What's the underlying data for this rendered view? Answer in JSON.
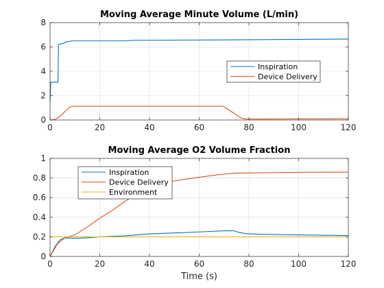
{
  "chart_data": [
    {
      "type": "line",
      "title": "Moving Average Minute Volume (L/min)",
      "xlabel": "",
      "ylabel": "",
      "xlim": [
        0,
        120
      ],
      "ylim": [
        0,
        8
      ],
      "xticks": [
        0,
        20,
        40,
        60,
        80,
        100,
        120
      ],
      "yticks": [
        0,
        2,
        4,
        6,
        8
      ],
      "grid": true,
      "legend_position": "right",
      "series": [
        {
          "name": "Inspiration",
          "color": "#0072BD",
          "points": [
            [
              0.0,
              1.5
            ],
            [
              0.3,
              3.1
            ],
            [
              3.2,
              3.1
            ],
            [
              3.4,
              6.2
            ],
            [
              5.5,
              6.3
            ],
            [
              6.0,
              6.4
            ],
            [
              9.0,
              6.5
            ],
            [
              30.0,
              6.5
            ],
            [
              34.0,
              6.55
            ],
            [
              70.0,
              6.58
            ],
            [
              120.0,
              6.65
            ]
          ]
        },
        {
          "name": "Device Delivery",
          "color": "#D95319",
          "points": [
            [
              0.0,
              0.0
            ],
            [
              2.0,
              0.05
            ],
            [
              4.0,
              0.3
            ],
            [
              6.0,
              0.7
            ],
            [
              8.0,
              1.05
            ],
            [
              9.0,
              1.12
            ],
            [
              12.0,
              1.13
            ],
            [
              69.5,
              1.13
            ],
            [
              71.0,
              0.95
            ],
            [
              74.0,
              0.55
            ],
            [
              77.0,
              0.15
            ],
            [
              79.0,
              0.08
            ],
            [
              120.0,
              0.1
            ]
          ]
        }
      ]
    },
    {
      "type": "line",
      "title": "Moving Average O2 Volume Fraction",
      "xlabel": "Time (s)",
      "ylabel": "",
      "xlim": [
        0,
        120
      ],
      "ylim": [
        0,
        1
      ],
      "xticks": [
        0,
        20,
        40,
        60,
        80,
        100,
        120
      ],
      "yticks": [
        0,
        0.2,
        0.4,
        0.6,
        0.8,
        1
      ],
      "grid": true,
      "legend_position": "top-left",
      "series": [
        {
          "name": "Inspiration",
          "color": "#0072BD",
          "points": [
            [
              0.0,
              0.0
            ],
            [
              2.0,
              0.1
            ],
            [
              4.0,
              0.17
            ],
            [
              6.0,
              0.19
            ],
            [
              10.0,
              0.185
            ],
            [
              15.0,
              0.19
            ],
            [
              20.0,
              0.2
            ],
            [
              30.0,
              0.21
            ],
            [
              40.0,
              0.23
            ],
            [
              50.0,
              0.24
            ],
            [
              60.0,
              0.25
            ],
            [
              70.0,
              0.262
            ],
            [
              74.0,
              0.262
            ],
            [
              76.0,
              0.245
            ],
            [
              79.0,
              0.232
            ],
            [
              85.0,
              0.226
            ],
            [
              100.0,
              0.22
            ],
            [
              120.0,
              0.213
            ]
          ]
        },
        {
          "name": "Device Delivery",
          "color": "#D95319",
          "points": [
            [
              0.0,
              0.0
            ],
            [
              3.0,
              0.13
            ],
            [
              6.0,
              0.19
            ],
            [
              10.0,
              0.22
            ],
            [
              15.0,
              0.3
            ],
            [
              20.0,
              0.39
            ],
            [
              25.0,
              0.47
            ],
            [
              30.0,
              0.56
            ],
            [
              35.0,
              0.64
            ],
            [
              40.0,
              0.7
            ],
            [
              45.0,
              0.745
            ],
            [
              50.0,
              0.77
            ],
            [
              55.0,
              0.79
            ],
            [
              60.0,
              0.808
            ],
            [
              65.0,
              0.825
            ],
            [
              70.0,
              0.84
            ],
            [
              75.0,
              0.85
            ],
            [
              80.0,
              0.852
            ],
            [
              90.0,
              0.855
            ],
            [
              100.0,
              0.858
            ],
            [
              120.0,
              0.86
            ]
          ]
        },
        {
          "name": "Environment",
          "color": "#EDB120",
          "points": [
            [
              0.0,
              0.2
            ],
            [
              120.0,
              0.2
            ]
          ]
        }
      ]
    }
  ],
  "tick_labels": {
    "x": [
      "0",
      "20",
      "40",
      "60",
      "80",
      "100",
      "120"
    ],
    "y_top": [
      "0",
      "2",
      "4",
      "6",
      "8"
    ],
    "y_bottom": [
      "0",
      "0.2",
      "0.4",
      "0.6",
      "0.8",
      "1"
    ]
  }
}
